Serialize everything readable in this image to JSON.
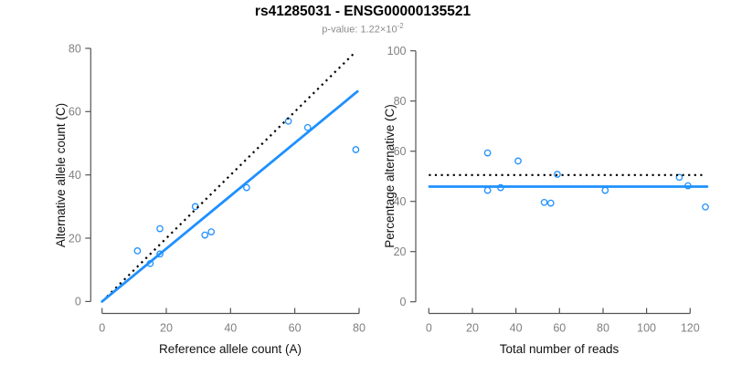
{
  "header": {
    "title": "rs41285031 - ENSG00000135521",
    "pvalue_label": "p-value: 1.22×10",
    "pvalue_exponent": "-2"
  },
  "colors": {
    "accent_blue": "#1e90ff",
    "dotted_black": "#000000",
    "axis_line": "#555555",
    "tick_text": "#808080",
    "axis_title_text": "#111111",
    "subtitle_text": "#8c8c8c",
    "background": "#ffffff"
  },
  "chart_data": [
    {
      "type": "scatter",
      "panel": "allele-counts",
      "xlabel": "Reference allele count (A)",
      "ylabel": "Alternative allele count (C)",
      "xlim": [
        0,
        80
      ],
      "ylim": [
        0,
        80
      ],
      "xticks": [
        0,
        20,
        40,
        60,
        80
      ],
      "yticks": [
        0,
        20,
        40,
        60,
        80
      ],
      "grid": false,
      "legend": null,
      "marker": {
        "shape": "open-circle",
        "radius": 3.2,
        "color": "accent_blue"
      },
      "points": [
        [
          11,
          16
        ],
        [
          15,
          12
        ],
        [
          18,
          15
        ],
        [
          18,
          23
        ],
        [
          29,
          30
        ],
        [
          32,
          21
        ],
        [
          34,
          22
        ],
        [
          45,
          36
        ],
        [
          58,
          57
        ],
        [
          64,
          55
        ],
        [
          79,
          48
        ]
      ],
      "lines": [
        {
          "name": "identity-line",
          "style": "dotted",
          "color": "dotted_black",
          "from": [
            1.5,
            1.5
          ],
          "to": [
            78.6,
            78.6
          ]
        },
        {
          "name": "regression-line",
          "style": "solid",
          "color": "accent_blue",
          "from": [
            0,
            0
          ],
          "to": [
            79.5,
            66.4
          ]
        }
      ]
    },
    {
      "type": "scatter",
      "panel": "percentage-alternative",
      "xlabel": "Total number of reads",
      "ylabel": "Percentage alternative (C)",
      "xlim": [
        0,
        128
      ],
      "ylim": [
        0,
        100
      ],
      "xticks": [
        0,
        20,
        40,
        60,
        80,
        100,
        120
      ],
      "yticks": [
        0,
        20,
        40,
        60,
        80,
        100
      ],
      "grid": false,
      "legend": null,
      "marker": {
        "shape": "open-circle",
        "radius": 3.2,
        "color": "accent_blue"
      },
      "points": [
        [
          27,
          59.3
        ],
        [
          27,
          44.4
        ],
        [
          33,
          45.5
        ],
        [
          41,
          56.1
        ],
        [
          53,
          39.6
        ],
        [
          56,
          39.3
        ],
        [
          59,
          50.8
        ],
        [
          81,
          44.4
        ],
        [
          115,
          49.6
        ],
        [
          119,
          46.2
        ],
        [
          127,
          37.8
        ]
      ],
      "lines": [
        {
          "name": "expected-50pct-line",
          "style": "dotted",
          "color": "dotted_black",
          "from": [
            0,
            50.5
          ],
          "to": [
            126,
            50.5
          ]
        },
        {
          "name": "mean-percentage-line",
          "style": "solid",
          "color": "accent_blue",
          "from": [
            0.3,
            45.9
          ],
          "to": [
            127.8,
            45.9
          ]
        }
      ]
    }
  ]
}
